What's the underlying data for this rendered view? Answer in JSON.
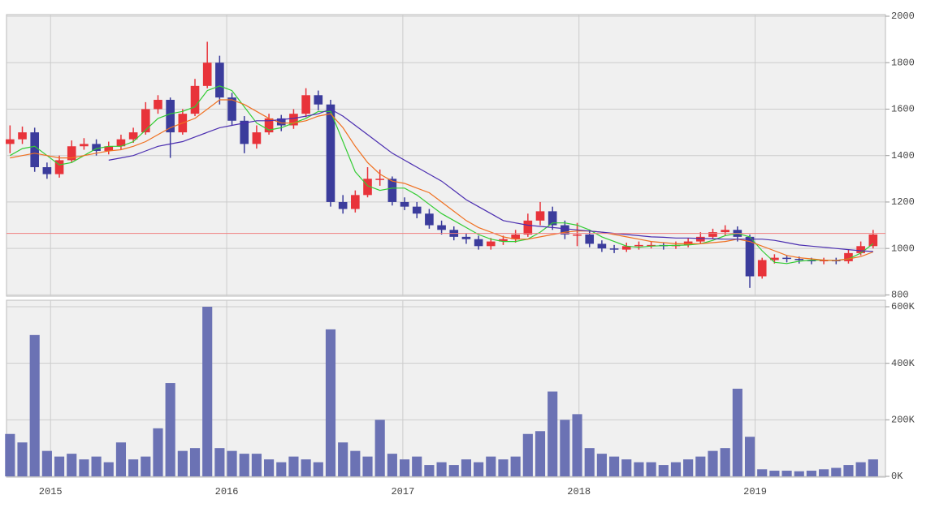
{
  "chart_data": [
    {
      "type": "candlestick",
      "x": [
        2014.77,
        2014.84,
        2014.91,
        2014.98,
        2015.05,
        2015.12,
        2015.19,
        2015.26,
        2015.33,
        2015.4,
        2015.47,
        2015.54,
        2015.61,
        2015.68,
        2015.75,
        2015.82,
        2015.89,
        2015.96,
        2016.03,
        2016.1,
        2016.17,
        2016.24,
        2016.31,
        2016.38,
        2016.45,
        2016.52,
        2016.59,
        2016.66,
        2016.73,
        2016.8,
        2016.87,
        2016.94,
        2017.01,
        2017.08,
        2017.15,
        2017.22,
        2017.29,
        2017.36,
        2017.43,
        2017.5,
        2017.57,
        2017.64,
        2017.71,
        2017.78,
        2017.85,
        2017.92,
        2017.99,
        2018.06,
        2018.13,
        2018.2,
        2018.27,
        2018.34,
        2018.41,
        2018.48,
        2018.55,
        2018.62,
        2018.69,
        2018.76,
        2018.83,
        2018.9,
        2018.97,
        2019.04,
        2019.11,
        2019.18,
        2019.25,
        2019.32,
        2019.39,
        2019.46,
        2019.53,
        2019.6,
        2019.67
      ],
      "open": [
        1450,
        1470,
        1500,
        1350,
        1320,
        1380,
        1440,
        1450,
        1420,
        1440,
        1470,
        1500,
        1600,
        1640,
        1500,
        1580,
        1700,
        1800,
        1650,
        1550,
        1450,
        1500,
        1560,
        1530,
        1580,
        1660,
        1620,
        1200,
        1170,
        1230,
        1300,
        1300,
        1200,
        1180,
        1150,
        1100,
        1080,
        1050,
        1040,
        1010,
        1030,
        1040,
        1060,
        1120,
        1160,
        1100,
        1060,
        1060,
        1020,
        1000,
        995,
        1010,
        1015,
        1015,
        1010,
        1015,
        1030,
        1050,
        1070,
        1080,
        1050,
        880,
        950,
        960,
        955,
        950,
        945,
        950,
        945,
        980,
        1010
      ],
      "high": [
        1530,
        1525,
        1520,
        1370,
        1400,
        1465,
        1475,
        1470,
        1460,
        1490,
        1520,
        1630,
        1660,
        1650,
        1600,
        1730,
        1890,
        1830,
        1670,
        1570,
        1530,
        1580,
        1575,
        1600,
        1690,
        1680,
        1640,
        1230,
        1250,
        1350,
        1340,
        1310,
        1220,
        1200,
        1170,
        1120,
        1095,
        1065,
        1055,
        1045,
        1055,
        1080,
        1150,
        1200,
        1180,
        1120,
        1110,
        1080,
        1035,
        1015,
        1025,
        1030,
        1030,
        1025,
        1030,
        1045,
        1070,
        1085,
        1100,
        1095,
        1060,
        960,
        975,
        970,
        965,
        960,
        960,
        960,
        995,
        1030,
        1080
      ],
      "low": [
        1410,
        1450,
        1330,
        1300,
        1305,
        1370,
        1425,
        1400,
        1405,
        1425,
        1455,
        1490,
        1580,
        1390,
        1490,
        1570,
        1690,
        1620,
        1530,
        1410,
        1430,
        1490,
        1505,
        1515,
        1565,
        1595,
        1180,
        1150,
        1155,
        1220,
        1270,
        1185,
        1165,
        1130,
        1085,
        1060,
        1035,
        1020,
        995,
        995,
        1015,
        1025,
        1050,
        1100,
        1080,
        1040,
        1010,
        1005,
        985,
        980,
        985,
        995,
        1000,
        995,
        998,
        1005,
        1020,
        1040,
        1055,
        1030,
        830,
        870,
        935,
        940,
        935,
        932,
        932,
        932,
        935,
        970,
        1000
      ],
      "close": [
        1470,
        1500,
        1350,
        1320,
        1380,
        1440,
        1450,
        1420,
        1440,
        1470,
        1500,
        1600,
        1640,
        1500,
        1580,
        1700,
        1800,
        1650,
        1550,
        1450,
        1500,
        1560,
        1530,
        1580,
        1660,
        1620,
        1200,
        1170,
        1230,
        1300,
        1300,
        1200,
        1180,
        1150,
        1100,
        1080,
        1050,
        1040,
        1010,
        1030,
        1040,
        1060,
        1120,
        1160,
        1100,
        1060,
        1060,
        1020,
        1000,
        995,
        1010,
        1015,
        1015,
        1010,
        1015,
        1030,
        1050,
        1070,
        1080,
        1050,
        880,
        950,
        960,
        955,
        950,
        945,
        950,
        945,
        980,
        1010,
        1060
      ],
      "up_color": "#e8333a",
      "down_color": "#3b3c9c",
      "series": [
        {
          "color": "#33cc33",
          "values": [
            1400,
            1430,
            1440,
            1400,
            1360,
            1370,
            1400,
            1430,
            1440,
            1440,
            1460,
            1510,
            1560,
            1580,
            1590,
            1610,
            1680,
            1700,
            1680,
            1610,
            1540,
            1510,
            1520,
            1540,
            1560,
            1590,
            1590,
            1460,
            1330,
            1270,
            1250,
            1260,
            1260,
            1230,
            1190,
            1150,
            1120,
            1090,
            1060,
            1040,
            1030,
            1030,
            1040,
            1070,
            1110,
            1110,
            1100,
            1080,
            1050,
            1030,
            1010,
            1005,
            1010,
            1012,
            1013,
            1015,
            1020,
            1035,
            1055,
            1065,
            1050,
            990,
            940,
            935,
            945,
            950,
            950,
            948,
            955,
            980,
            1020
          ]
        },
        {
          "color": "#f07020",
          "values": [
            1390,
            1400,
            1410,
            1400,
            1390,
            1390,
            1400,
            1410,
            1420,
            1425,
            1440,
            1460,
            1490,
            1520,
            1540,
            1560,
            1600,
            1640,
            1640,
            1620,
            1590,
            1560,
            1540,
            1540,
            1550,
            1570,
            1580,
            1520,
            1440,
            1370,
            1320,
            1290,
            1280,
            1260,
            1240,
            1200,
            1160,
            1120,
            1090,
            1070,
            1050,
            1040,
            1040,
            1050,
            1060,
            1070,
            1075,
            1075,
            1070,
            1060,
            1050,
            1040,
            1030,
            1025,
            1020,
            1020,
            1020,
            1025,
            1030,
            1040,
            1030,
            1010,
            990,
            970,
            960,
            955,
            950,
            948,
            955,
            965,
            985
          ]
        },
        {
          "color": "#4a2db0",
          "values": [
            null,
            null,
            null,
            null,
            null,
            null,
            null,
            null,
            1380,
            1390,
            1400,
            1420,
            1440,
            1450,
            1460,
            1480,
            1500,
            1520,
            1530,
            1540,
            1550,
            1550,
            1555,
            1560,
            1570,
            1580,
            1600,
            1570,
            1530,
            1490,
            1450,
            1410,
            1380,
            1350,
            1320,
            1290,
            1250,
            1210,
            1180,
            1150,
            1120,
            1110,
            1100,
            1095,
            1090,
            1085,
            1080,
            1075,
            1070,
            1065,
            1060,
            1055,
            1050,
            1048,
            1045,
            1045,
            1043,
            1042,
            1040,
            1040,
            1040,
            1040,
            1035,
            1025,
            1015,
            1010,
            1005,
            1000,
            995,
            990,
            987
          ]
        }
      ],
      "reference_line": 1065,
      "reference_color": "#f08080",
      "xlim": [
        2014.75,
        2019.74
      ],
      "xticks": [
        2015,
        2016,
        2017,
        2018,
        2019
      ],
      "ylim": [
        800,
        2000
      ],
      "yticks": [
        800,
        1000,
        1200,
        1400,
        1600,
        1800,
        2000
      ],
      "grid": true
    },
    {
      "type": "bar",
      "x": [
        2014.77,
        2014.84,
        2014.91,
        2014.98,
        2015.05,
        2015.12,
        2015.19,
        2015.26,
        2015.33,
        2015.4,
        2015.47,
        2015.54,
        2015.61,
        2015.68,
        2015.75,
        2015.82,
        2015.89,
        2015.96,
        2016.03,
        2016.1,
        2016.17,
        2016.24,
        2016.31,
        2016.38,
        2016.45,
        2016.52,
        2016.59,
        2016.66,
        2016.73,
        2016.8,
        2016.87,
        2016.94,
        2017.01,
        2017.08,
        2017.15,
        2017.22,
        2017.29,
        2017.36,
        2017.43,
        2017.5,
        2017.57,
        2017.64,
        2017.71,
        2017.78,
        2017.85,
        2017.92,
        2017.99,
        2018.06,
        2018.13,
        2018.2,
        2018.27,
        2018.34,
        2018.41,
        2018.48,
        2018.55,
        2018.62,
        2018.69,
        2018.76,
        2018.83,
        2018.9,
        2018.97,
        2019.04,
        2019.11,
        2019.18,
        2019.25,
        2019.32,
        2019.39,
        2019.46,
        2019.53,
        2019.6,
        2019.67
      ],
      "values": [
        150000,
        120000,
        500000,
        90000,
        70000,
        80000,
        60000,
        70000,
        50000,
        120000,
        60000,
        70000,
        170000,
        330000,
        90000,
        100000,
        600000,
        100000,
        90000,
        80000,
        80000,
        60000,
        50000,
        70000,
        60000,
        50000,
        520000,
        120000,
        90000,
        70000,
        200000,
        80000,
        60000,
        70000,
        40000,
        50000,
        40000,
        60000,
        50000,
        70000,
        60000,
        70000,
        150000,
        160000,
        300000,
        200000,
        220000,
        100000,
        80000,
        70000,
        60000,
        50000,
        50000,
        40000,
        50000,
        60000,
        70000,
        90000,
        100000,
        310000,
        140000,
        25000,
        20000,
        20000,
        18000,
        20000,
        25000,
        30000,
        40000,
        50000,
        60000
      ],
      "color": "#6b72b4",
      "xlim": [
        2014.75,
        2019.74
      ],
      "xticks": [
        2015,
        2016,
        2017,
        2018,
        2019
      ],
      "ylim": [
        0,
        600000
      ],
      "yticks": [
        {
          "value": 0,
          "label": "0K"
        },
        {
          "value": 200000,
          "label": "200K"
        },
        {
          "value": 400000,
          "label": "400K"
        },
        {
          "value": 600000,
          "label": "600K"
        }
      ],
      "grid": true
    }
  ]
}
